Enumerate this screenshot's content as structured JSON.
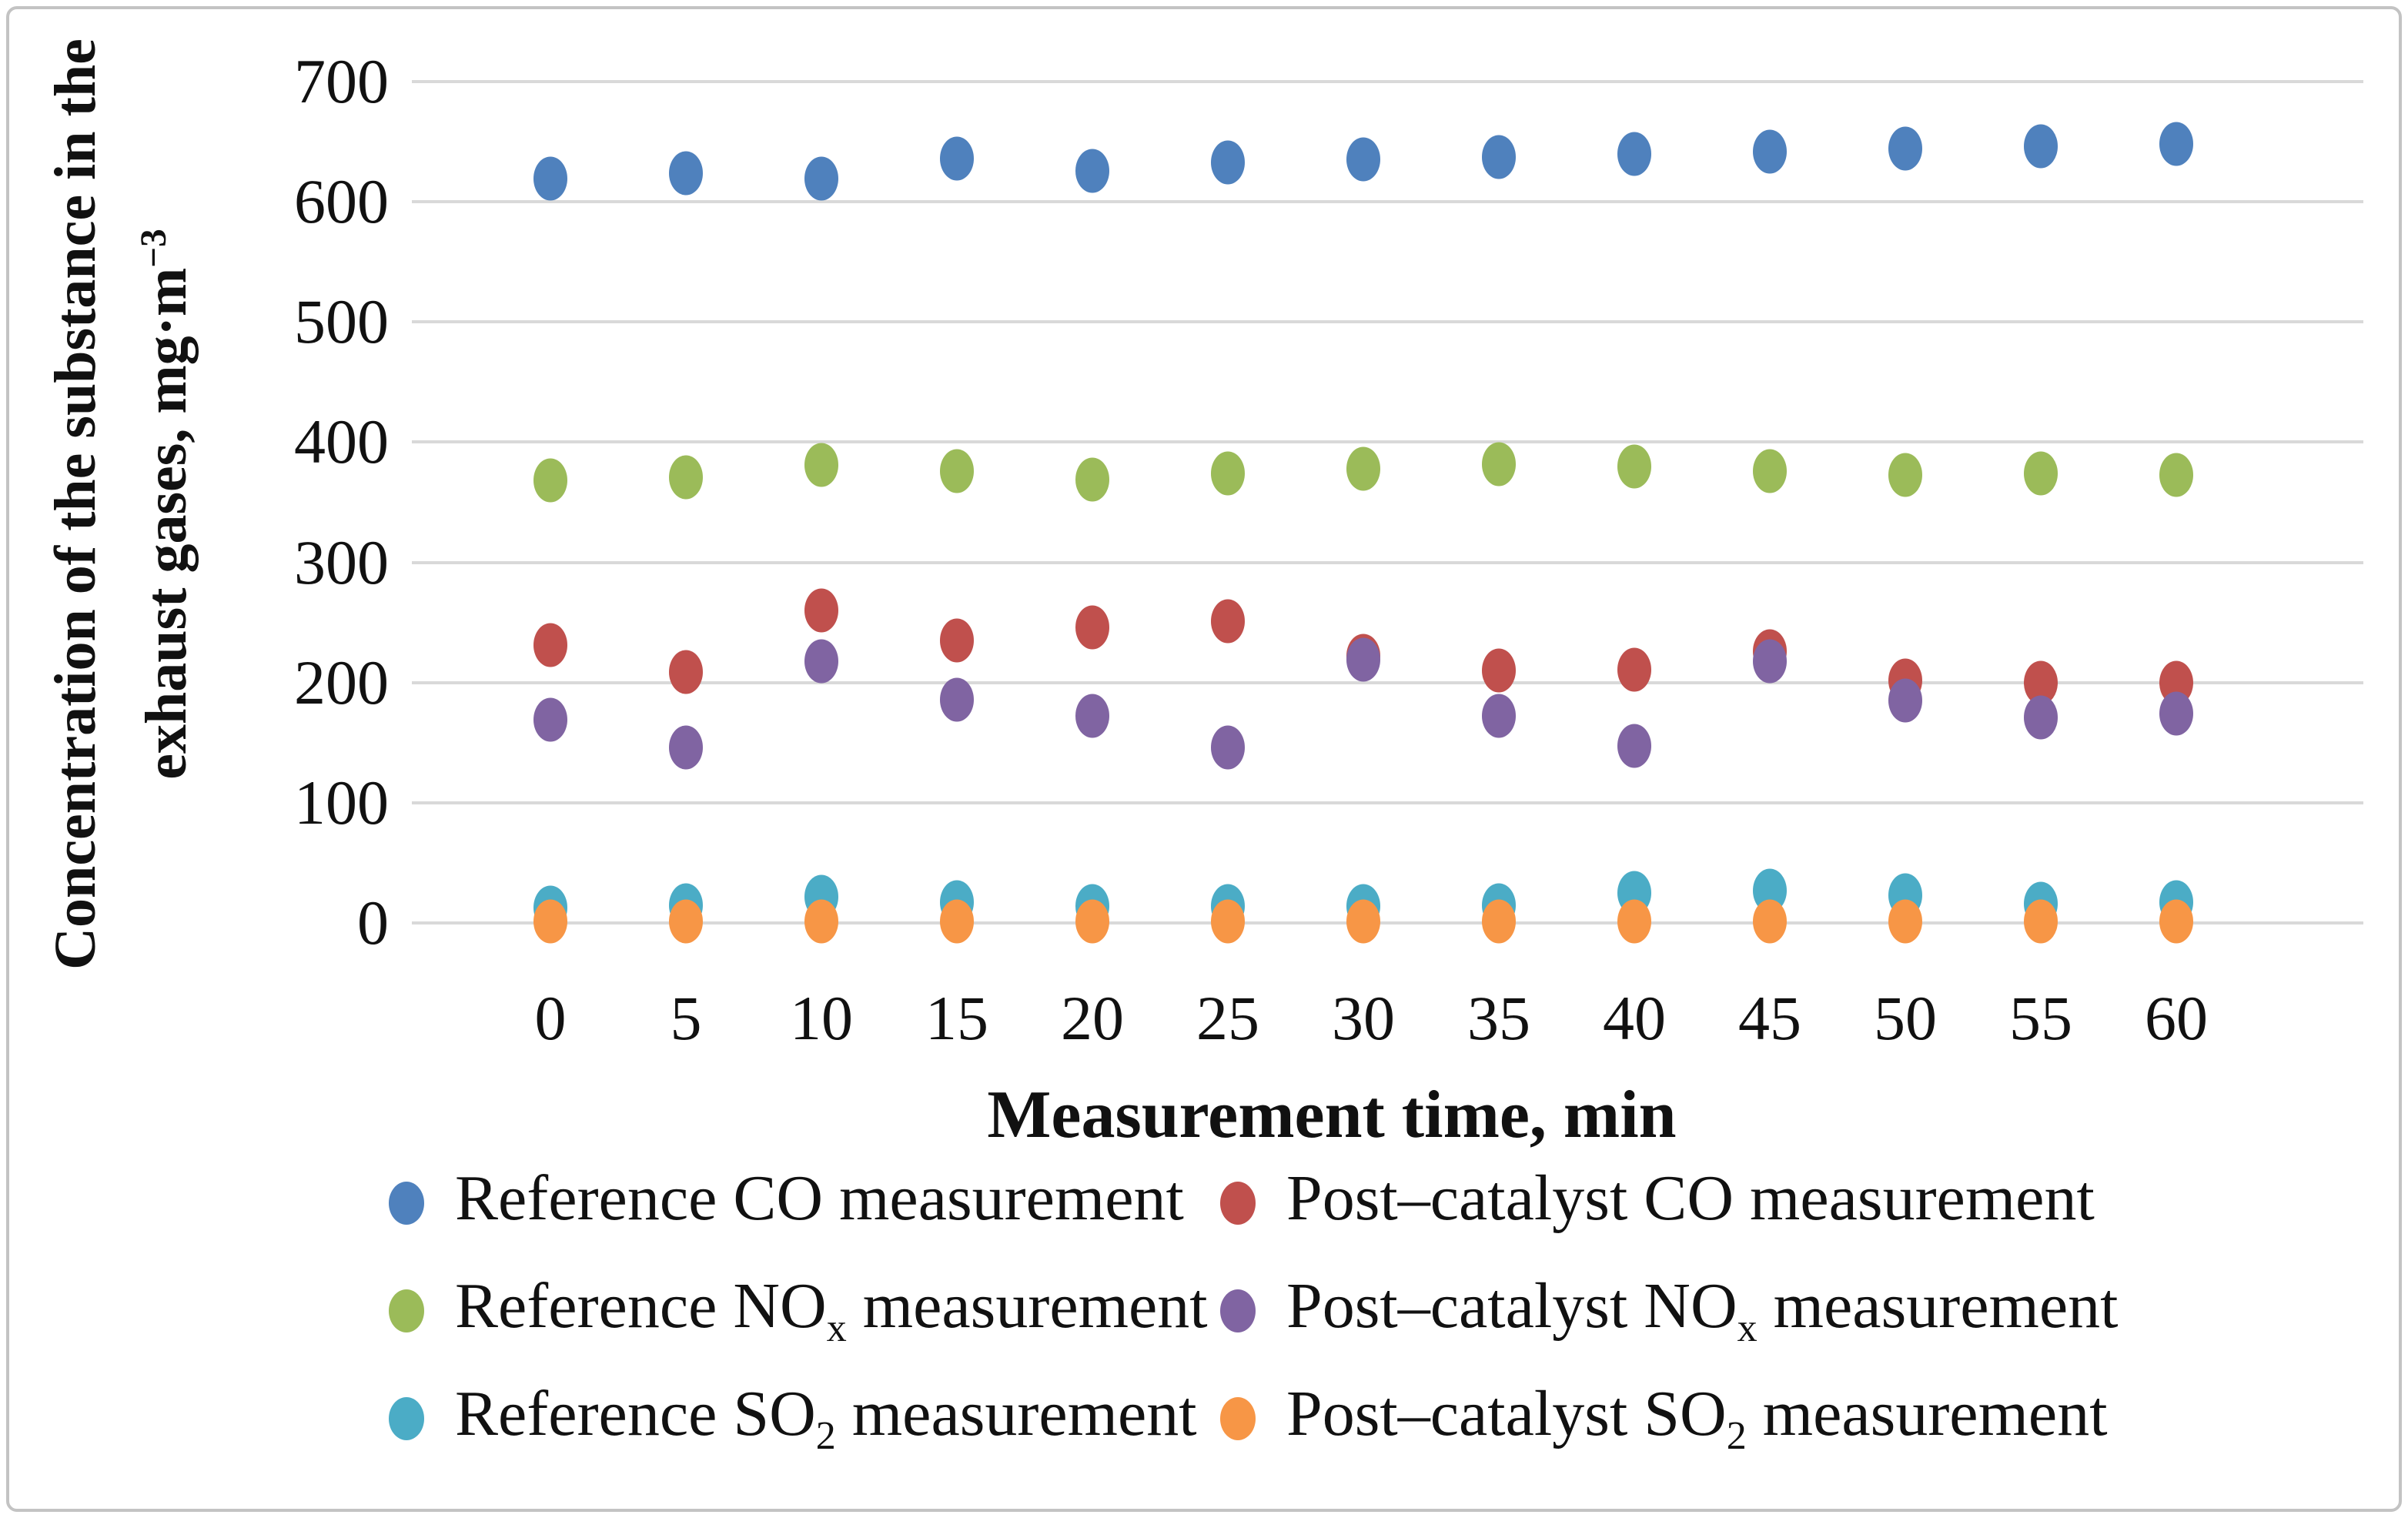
{
  "chart_data": {
    "type": "scatter",
    "x": [
      0,
      5,
      10,
      15,
      20,
      25,
      30,
      35,
      40,
      45,
      50,
      55,
      60
    ],
    "xtick_labels": [
      "0",
      "5",
      "10",
      "15",
      "20",
      "25",
      "30",
      "35",
      "40",
      "45",
      "50",
      "55",
      "60"
    ],
    "ytick_labels": [
      "0",
      "100",
      "200",
      "300",
      "400",
      "500",
      "600",
      "700"
    ],
    "ylim": [
      0,
      700
    ],
    "ytick_step": 100,
    "grid": "horizontal",
    "xlabel": "Measurement time, min",
    "ylabel": {
      "line1": "Concentration of the substance in the",
      "line2": "exhaust gases, mg·m",
      "sup": "−3"
    },
    "legend_position": "bottom",
    "series": [
      {
        "name": "Reference CO measurement",
        "color": "#4F81BD",
        "values": [
          619,
          624,
          619,
          636,
          626,
          633,
          635,
          637,
          640,
          642,
          644,
          646,
          648
        ]
      },
      {
        "name": "Post–catalyst CO measurement",
        "color": "#C0504D",
        "values": [
          231,
          209,
          260,
          235,
          246,
          251,
          222,
          210,
          211,
          226,
          202,
          200,
          200
        ]
      },
      {
        "name": "Reference NOx measurement",
        "color": "#9BBB59",
        "values": [
          368,
          371,
          381,
          376,
          369,
          374,
          378,
          382,
          380,
          376,
          373,
          374,
          373
        ]
      },
      {
        "name": "Post–catalyst NOx measurement",
        "color": "#8064A2",
        "values": [
          169,
          146,
          218,
          186,
          172,
          146,
          219,
          172,
          147,
          218,
          185,
          171,
          174
        ]
      },
      {
        "name": "Reference SO2 measurement",
        "color": "#4BACC6",
        "values": [
          13,
          15,
          22,
          17,
          14,
          14,
          14,
          15,
          25,
          27,
          23,
          16,
          17
        ]
      },
      {
        "name": "Post–catalyst SO2 measurement",
        "color": "#F79646",
        "values": [
          1,
          1,
          1,
          1,
          1,
          1,
          1,
          1,
          1,
          1,
          1,
          1,
          1
        ]
      }
    ],
    "legend": [
      {
        "pre": "Reference CO measurement",
        "sub": "",
        "post": ""
      },
      {
        "pre": "Post–catalyst CO measurement",
        "sub": "",
        "post": ""
      },
      {
        "pre": "Reference NO",
        "sub": "x",
        "post": " measurement"
      },
      {
        "pre": "Post–catalyst NO",
        "sub": "x",
        "post": " measurement"
      },
      {
        "pre": "Reference SO",
        "sub": "2",
        "post": " measurement"
      },
      {
        "pre": "Post–catalyst SO",
        "sub": "2",
        "post": " measurement"
      }
    ]
  }
}
